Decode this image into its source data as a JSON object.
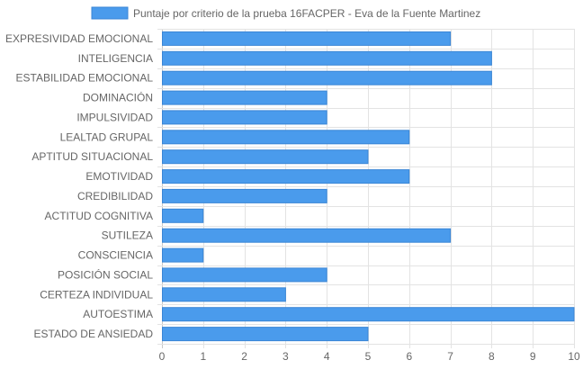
{
  "colors": {
    "bar_fill": "#4a9bec",
    "bar_stroke": "#3a86d6",
    "grid": "#e3e3e3",
    "axis": "#c8c8c8",
    "text": "#666666"
  },
  "chart_data": {
    "type": "bar",
    "orientation": "horizontal",
    "legend_position": "top-center",
    "grid": true,
    "categories": [
      "EXPRESIVIDAD EMOCIONAL",
      "INTELIGENCIA",
      "ESTABILIDAD EMOCIONAL",
      "DOMINACIÓN",
      "IMPULSIVIDAD",
      "LEALTAD GRUPAL",
      "APTITUD SITUACIONAL",
      "EMOTIVIDAD",
      "CREDIBILIDAD",
      "ACTITUD COGNITIVA",
      "SUTILEZA",
      "CONSCIENCIA",
      "POSICIÓN SOCIAL",
      "CERTEZA INDIVIDUAL",
      "AUTOESTIMA",
      "ESTADO DE ANSIEDAD"
    ],
    "series": [
      {
        "name": "Puntaje por criterio de la prueba 16FACPER - Eva de la Fuente Martinez",
        "values": [
          7,
          8,
          8,
          4,
          4,
          6,
          5,
          6,
          4,
          1,
          7,
          1,
          4,
          3,
          10,
          5
        ]
      }
    ],
    "xlim": [
      0,
      10
    ],
    "xticks": [
      "0",
      "1",
      "2",
      "3",
      "4",
      "5",
      "6",
      "7",
      "8",
      "9",
      "10"
    ]
  }
}
